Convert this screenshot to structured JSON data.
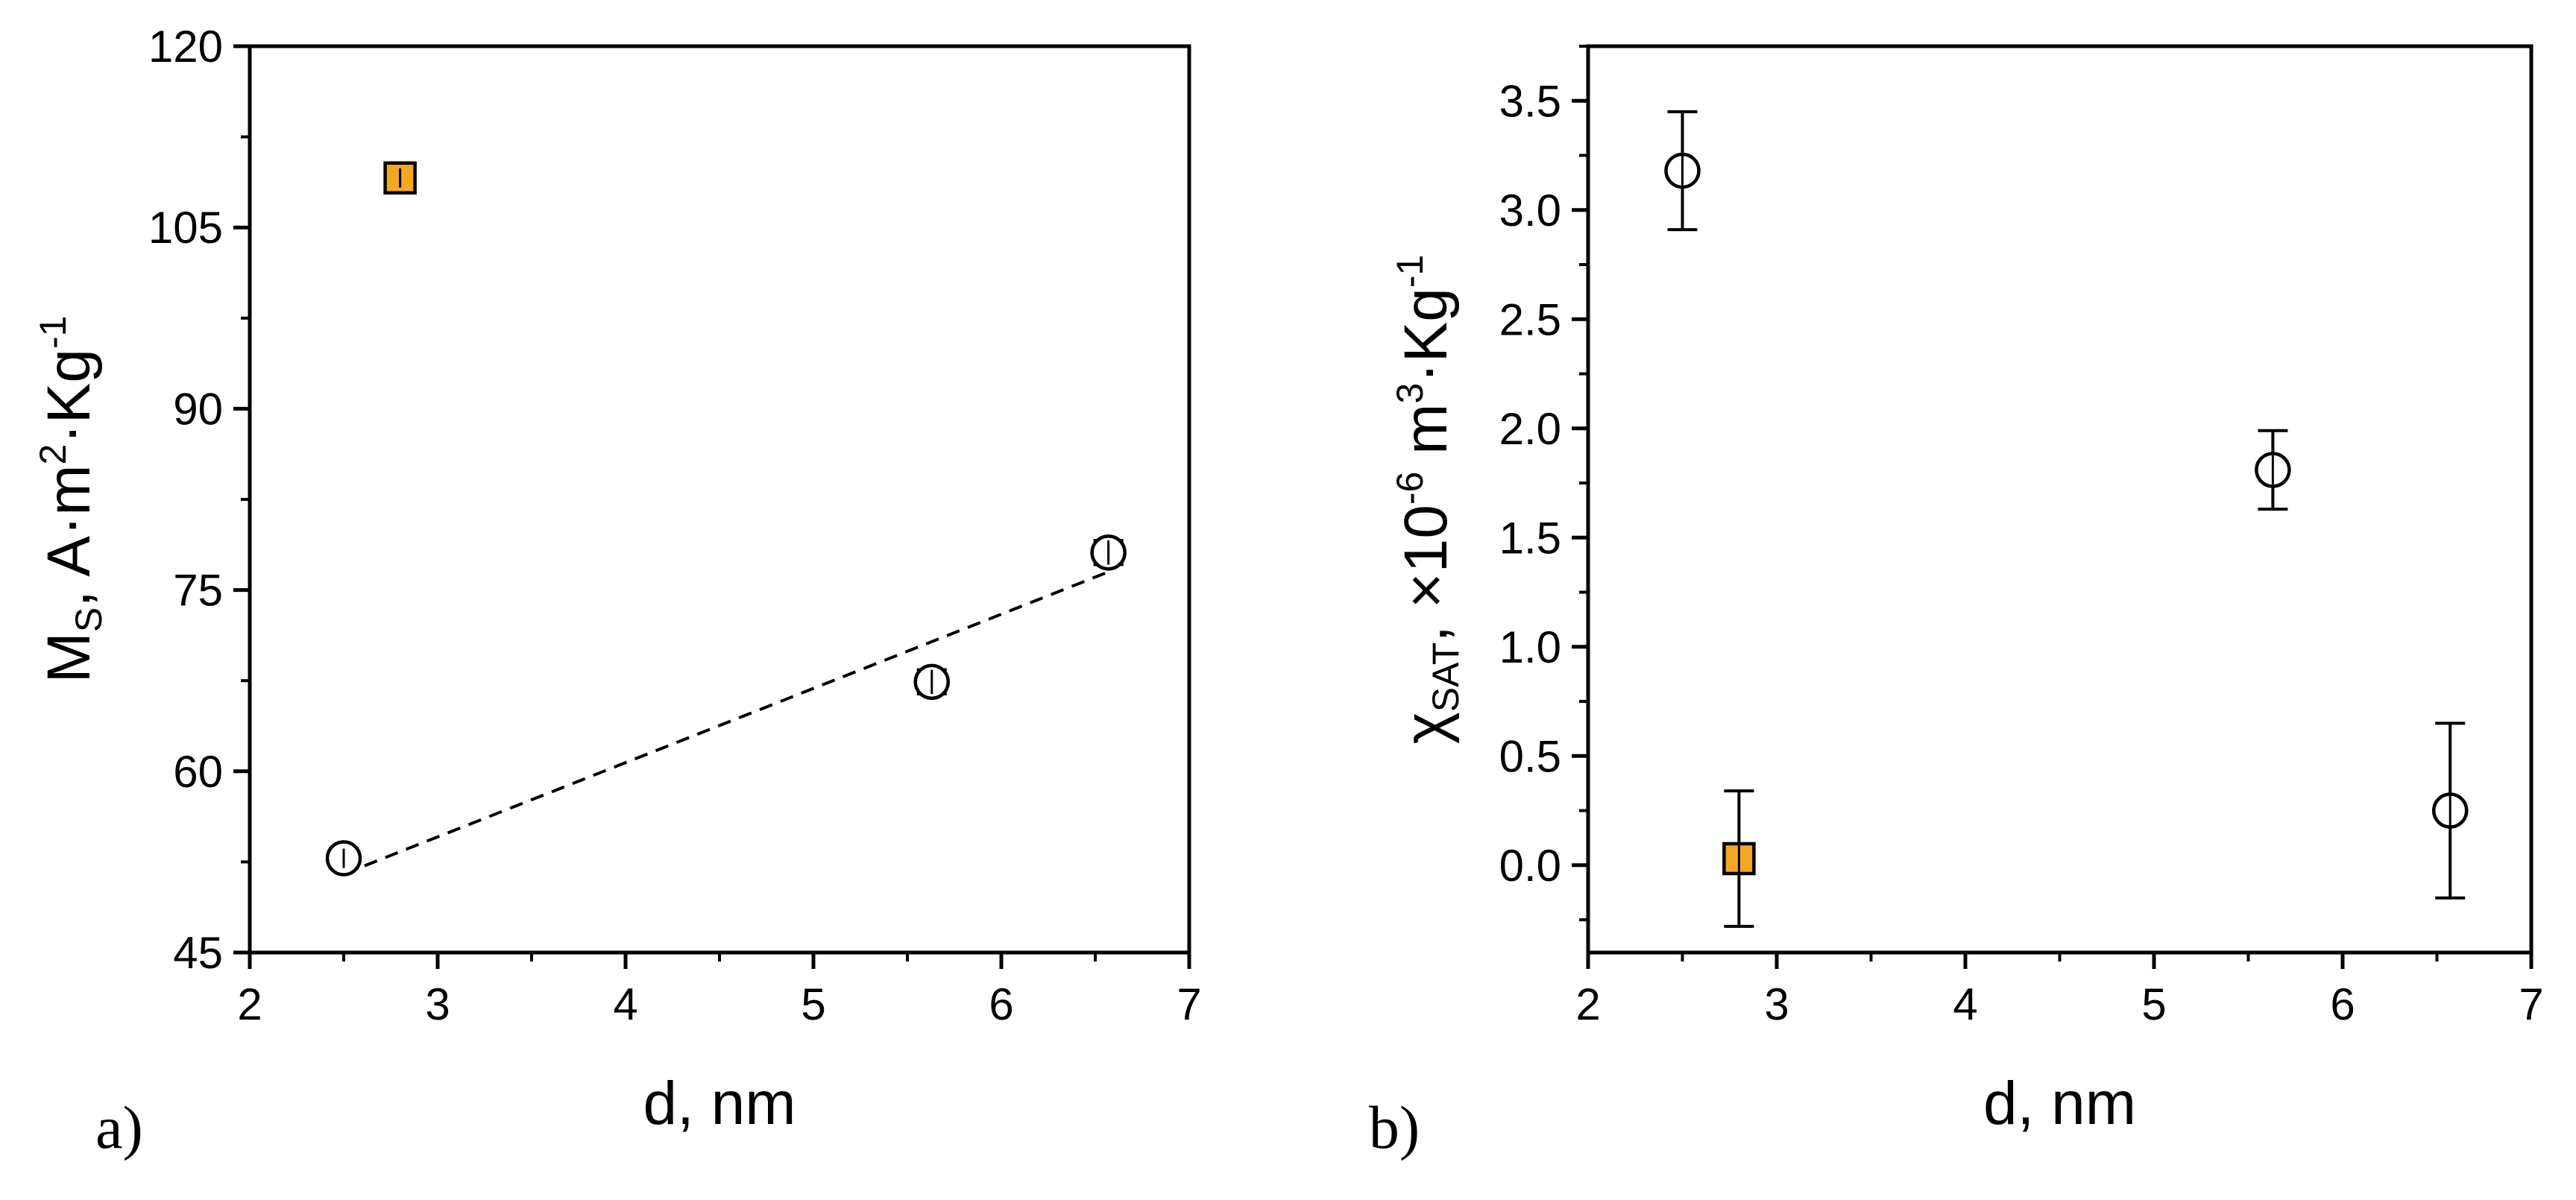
{
  "chart_data": [
    {
      "type": "scatter",
      "panel_label": "a)",
      "xlabel": "d, nm",
      "ylabel": {
        "main": "M",
        "sub": "S",
        "rest": ", A·m",
        "sup": "2",
        "rest2": "·Kg",
        "sup2": "-1"
      },
      "xlim": [
        2,
        7
      ],
      "ylim": [
        45,
        120
      ],
      "xticks": [
        2,
        3,
        4,
        5,
        6,
        7
      ],
      "yticks": [
        45,
        60,
        75,
        90,
        105,
        120
      ],
      "series": [
        {
          "name": "open circles",
          "marker": "circle",
          "color": "#ffffff",
          "points": [
            {
              "x": 2.5,
              "y": 52.8,
              "err": 0.8
            },
            {
              "x": 5.63,
              "y": 67.4,
              "err": 1.0
            },
            {
              "x": 6.57,
              "y": 78.1,
              "err": 1.0
            }
          ]
        },
        {
          "name": "filled square",
          "marker": "square",
          "color": "#f5a623",
          "points": [
            {
              "x": 2.8,
              "y": 109.1,
              "err": 0.8
            }
          ]
        }
      ],
      "fit_line": {
        "style": "dashed",
        "x": [
          2.5,
          6.57
        ],
        "y": [
          51.5,
          76.5
        ]
      }
    },
    {
      "type": "scatter",
      "panel_label": "b)",
      "xlabel": "d, nm",
      "ylabel": {
        "main": "χ",
        "sub": "SAT",
        "rest": ", ×10",
        "sup": "-6",
        "rest2": " m",
        "sup2": "3",
        "rest3": "·Kg",
        "sup3": "-1"
      },
      "xlim": [
        2,
        7
      ],
      "ylim": [
        -0.4,
        3.75
      ],
      "xticks": [
        2,
        3,
        4,
        5,
        6,
        7
      ],
      "yticks": [
        0.0,
        0.5,
        1.0,
        1.5,
        2.0,
        2.5,
        3.0,
        3.5
      ],
      "ytick_labels": [
        "0.0",
        "0.5",
        "1.0",
        "1.5",
        "2.0",
        "2.5",
        "3.0",
        "3.5"
      ],
      "series": [
        {
          "name": "open circles",
          "marker": "circle",
          "color": "#ffffff",
          "points": [
            {
              "x": 2.5,
              "y": 3.18,
              "err": 0.27
            },
            {
              "x": 5.63,
              "y": 1.81,
              "err": 0.18
            },
            {
              "x": 6.57,
              "y": 0.25,
              "err": 0.4
            }
          ]
        },
        {
          "name": "filled square",
          "marker": "square",
          "color": "#f5a623",
          "points": [
            {
              "x": 2.8,
              "y": 0.03,
              "err": 0.31
            }
          ]
        }
      ]
    }
  ]
}
